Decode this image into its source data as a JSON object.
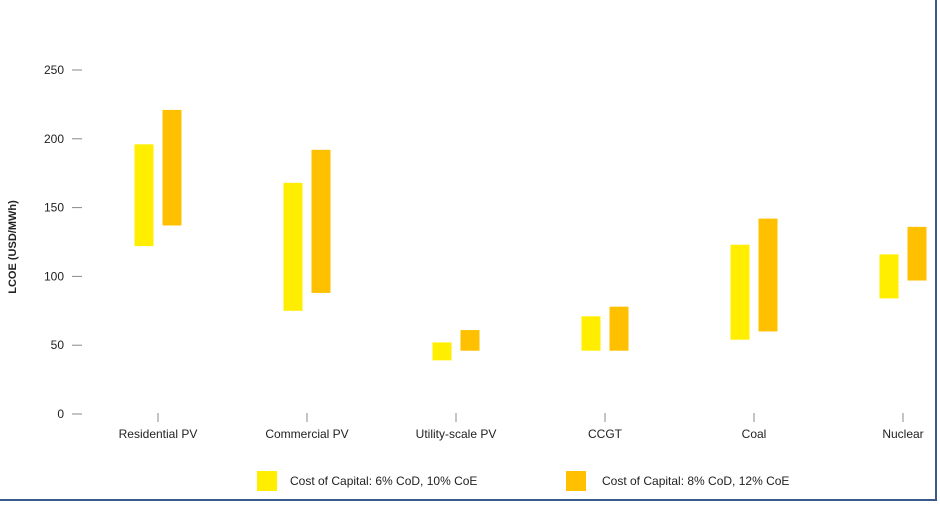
{
  "chart_data": {
    "type": "range-bar",
    "ylabel": "LCOE (USD/MWh)",
    "ylim": [
      0,
      250
    ],
    "yticks": [
      0,
      50,
      100,
      150,
      200,
      250
    ],
    "categories": [
      "Residential PV",
      "Commercial PV",
      "Utility-scale PV",
      "CCGT",
      "Coal",
      "Nuclear"
    ],
    "series": [
      {
        "name": "Cost of Capital: 6% CoD, 10% CoE",
        "color": "#ffee00",
        "ranges": [
          [
            122,
            196
          ],
          [
            75,
            168
          ],
          [
            39,
            52
          ],
          [
            46,
            71
          ],
          [
            54,
            123
          ],
          [
            84,
            116
          ]
        ]
      },
      {
        "name": "Cost of Capital: 8% CoD, 12% CoE",
        "color": "#ffc000",
        "ranges": [
          [
            137,
            221
          ],
          [
            88,
            192
          ],
          [
            46,
            61
          ],
          [
            46,
            78
          ],
          [
            60,
            142
          ],
          [
            97,
            136
          ]
        ]
      }
    ],
    "legend_position": "bottom",
    "grid": false
  }
}
